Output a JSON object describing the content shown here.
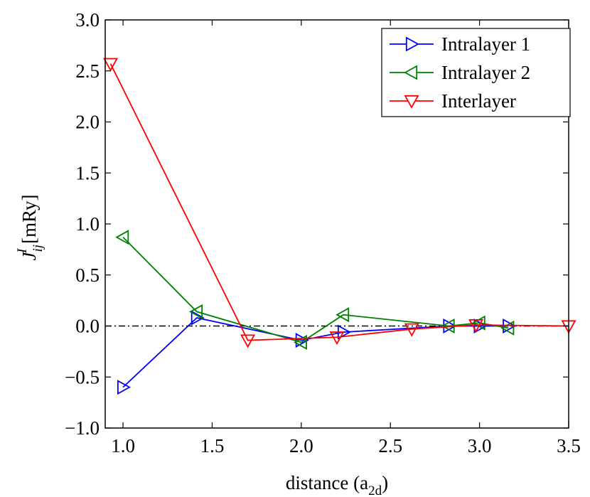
{
  "chart_data": {
    "type": "line",
    "xlabel": "distance (a",
    "xlabel_sub": "2d",
    "xlabel_close": ")",
    "ylabel_main": "J",
    "ylabel_sup": "I",
    "ylabel_sub": "ij",
    "ylabel_unit": " [mRy]",
    "xlim": [
      0.9,
      3.5
    ],
    "ylim": [
      -1.0,
      3.0
    ],
    "x_ticks": [
      1.0,
      1.5,
      2.0,
      2.5,
      3.0,
      3.5
    ],
    "x_tick_labels": [
      "1.0",
      "1.5",
      "2.0",
      "2.5",
      "3.0",
      "3.5"
    ],
    "y_ticks": [
      -1.0,
      -0.5,
      0.0,
      0.5,
      1.0,
      1.5,
      2.0,
      2.5,
      3.0
    ],
    "y_tick_labels": [
      "−1.0",
      "−0.5",
      "0.0",
      "0.5",
      "1.0",
      "1.5",
      "2.0",
      "2.5",
      "3.0"
    ],
    "reference_line": {
      "y": 0.0,
      "style": "dash-dot",
      "color": "#000000"
    },
    "legend_position": "top-right",
    "series": [
      {
        "name": "Intralayer 1",
        "color": "#0000ff",
        "marker": "triangle-right",
        "x": [
          1.0,
          1.414,
          2.0,
          2.236,
          2.828,
          3.0,
          3.162
        ],
        "y": [
          -0.6,
          0.08,
          -0.14,
          -0.06,
          0.0,
          0.0,
          0.0
        ]
      },
      {
        "name": "Intralayer 2",
        "color": "#008000",
        "marker": "triangle-left",
        "x": [
          1.0,
          1.414,
          2.0,
          2.236,
          2.828,
          3.0,
          3.162
        ],
        "y": [
          0.87,
          0.14,
          -0.16,
          0.11,
          0.0,
          0.03,
          -0.02
        ]
      },
      {
        "name": "Interlayer",
        "color": "#ff0000",
        "marker": "triangle-down",
        "x": [
          0.93,
          1.7,
          2.2,
          2.62,
          2.98,
          3.5
        ],
        "y": [
          2.57,
          -0.14,
          -0.11,
          -0.03,
          0.01,
          0.0
        ]
      }
    ]
  }
}
